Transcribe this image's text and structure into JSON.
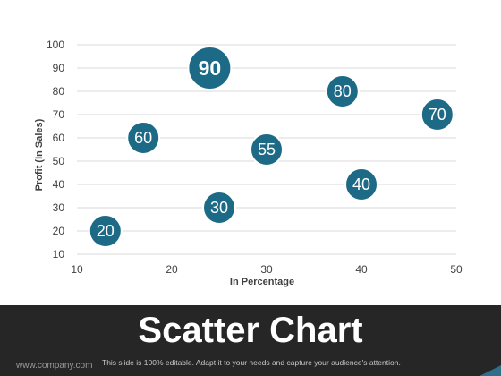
{
  "chart_data": {
    "type": "scatter",
    "title": "Scatter Chart",
    "xlabel": "In Percentage",
    "ylabel": "Profit  (In Sales)",
    "xlim": [
      10,
      50
    ],
    "ylim": [
      10,
      100
    ],
    "xticks": [
      10,
      20,
      30,
      40,
      50
    ],
    "yticks": [
      10,
      20,
      30,
      40,
      50,
      60,
      70,
      80,
      90,
      100
    ],
    "grid": true,
    "points": [
      {
        "x": 13,
        "y": 20,
        "label": "20"
      },
      {
        "x": 17,
        "y": 60,
        "label": "60"
      },
      {
        "x": 24,
        "y": 90,
        "label": "90",
        "emphasis": true
      },
      {
        "x": 25,
        "y": 30,
        "label": "30"
      },
      {
        "x": 30,
        "y": 55,
        "label": "55"
      },
      {
        "x": 38,
        "y": 80,
        "label": "80"
      },
      {
        "x": 40,
        "y": 40,
        "label": "40"
      },
      {
        "x": 48,
        "y": 70,
        "label": "70"
      }
    ],
    "colors": {
      "marker": "#1d6a86",
      "marker_stroke": "#ffffff",
      "grid": "#d9d9d9",
      "tick": "#404040"
    }
  },
  "footer": {
    "title": "Scatter Chart",
    "website": "www.company.com",
    "note": "This slide is 100% editable. Adapt it to your needs and capture your audience's attention."
  }
}
